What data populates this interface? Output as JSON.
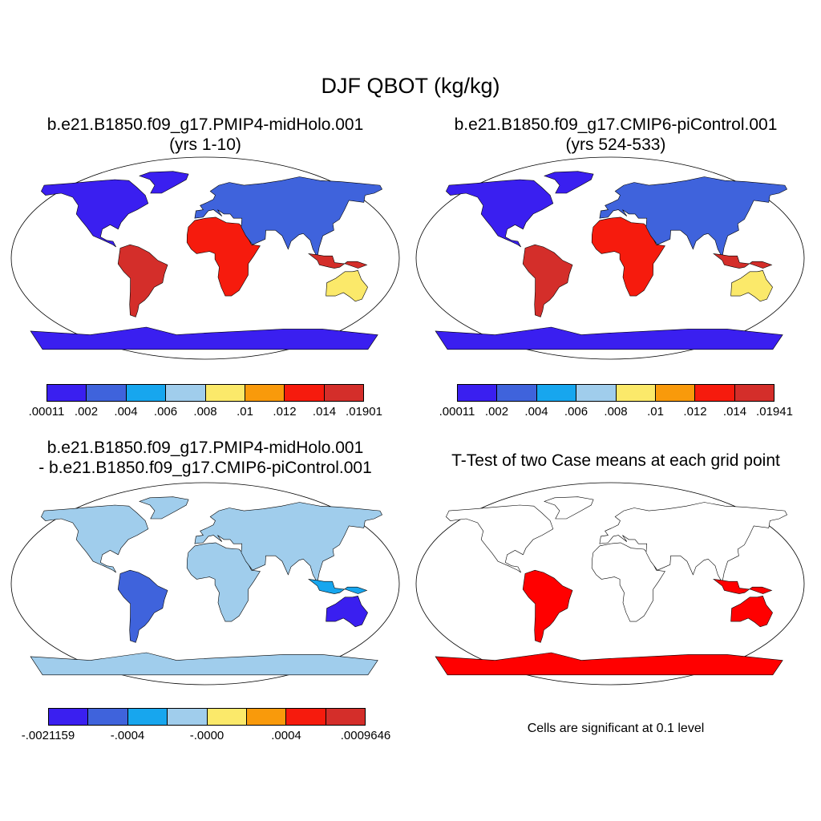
{
  "figure": {
    "title": "DJF QBOT (kg/kg)"
  },
  "palette": {
    "levels8": [
      "#3a1ff0",
      "#3f63dc",
      "#17a6ee",
      "#a0cdec",
      "#fbe96a",
      "#f99a0b",
      "#f61b0d",
      "#d42e2a"
    ],
    "ocean": "#ffffff",
    "significant": "#ff0000",
    "outline": "#000000"
  },
  "panels": {
    "top_left": {
      "title_line1": "b.e21.B1850.f09_g17.PMIP4-midHolo.001",
      "title_line2": "(yrs 1-10)",
      "colorbar_labels": [
        ".00011",
        ".002",
        ".004",
        ".006",
        ".008",
        ".01",
        ".012",
        ".014",
        ".01901"
      ]
    },
    "top_right": {
      "title_line1": "b.e21.B1850.f09_g17.CMIP6-piControl.001",
      "title_line2": "(yrs 524-533)",
      "colorbar_labels": [
        ".00011",
        ".002",
        ".004",
        ".006",
        ".008",
        ".01",
        ".012",
        ".014",
        ".01941"
      ]
    },
    "bottom_left": {
      "title_line1": "b.e21.B1850.f09_g17.PMIP4-midHolo.001",
      "title_line2": "- b.e21.B1850.f09_g17.CMIP6-piControl.001",
      "colorbar_labels": [
        "-.0021159",
        "-.0004",
        "-.0000",
        ".0004",
        ".0009646"
      ]
    },
    "bottom_right": {
      "title": "T-Test of two Case means at each grid point",
      "note": "Cells are significant at 0.1 level"
    }
  }
}
